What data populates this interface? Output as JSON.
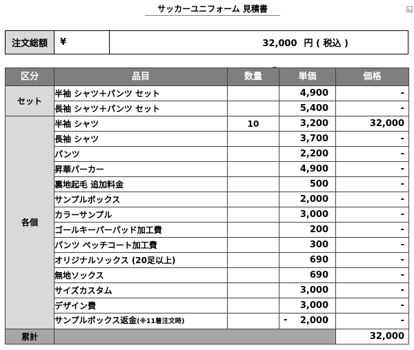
{
  "document": {
    "title": "サッカーユニフォーム 見積書"
  },
  "total": {
    "label": "注文総額",
    "currency": "¥",
    "amount": "32,000",
    "unit": "円 ( 税込 )"
  },
  "table": {
    "headers": {
      "category": "区分",
      "item": "品目",
      "quantity": "数量",
      "unit_price": "単価",
      "price": "価格"
    },
    "groups": [
      {
        "category": "セット",
        "rows": [
          {
            "item": "半袖 シャツ＋パンツ セット",
            "qty": "",
            "unit_price": "4,900",
            "price": "-"
          },
          {
            "item": "長袖 シャツ＋パンツ セット",
            "qty": "",
            "unit_price": "5,400",
            "price": "-"
          }
        ]
      },
      {
        "category": "各個",
        "rows": [
          {
            "item": "半袖 シャツ",
            "qty": "10",
            "unit_price": "3,200",
            "price": "32,000"
          },
          {
            "item": "長袖 シャツ",
            "qty": "",
            "unit_price": "3,700",
            "price": "-"
          },
          {
            "item": "パンツ",
            "qty": "",
            "unit_price": "2,200",
            "price": "-"
          },
          {
            "item": "昇華パーカー",
            "qty": "",
            "unit_price": "4,900",
            "price": "-"
          },
          {
            "item": "裏地起毛 追加料金",
            "qty": "",
            "unit_price": "500",
            "price": "-"
          },
          {
            "item": "サンプルボックス",
            "qty": "",
            "unit_price": "2,000",
            "price": "-"
          },
          {
            "item": "カラーサンプル",
            "qty": "",
            "unit_price": "3,000",
            "price": "-"
          },
          {
            "item": "ゴールキーパーパッド加工費",
            "qty": "",
            "unit_price": "200",
            "price": "-"
          },
          {
            "item": "パンツ ペッチコート加工費",
            "qty": "",
            "unit_price": "300",
            "price": "-"
          },
          {
            "item": "オリジナルソックス (20足以上)",
            "qty": "",
            "unit_price": "690",
            "price": "-"
          },
          {
            "item": "無地ソックス",
            "qty": "",
            "unit_price": "690",
            "price": "-"
          },
          {
            "item": "サイズカスタム",
            "qty": "",
            "unit_price": "3,000",
            "price": "-"
          },
          {
            "item": "デザイン費",
            "qty": "",
            "unit_price": "3,000",
            "price": "-"
          },
          {
            "item": "サンプルボックス返金",
            "item_note": "(※11着注文時)",
            "qty": "",
            "unit_price_sign": "-",
            "unit_price": "2,000",
            "price": "-"
          }
        ]
      }
    ],
    "footer": {
      "label": "累計",
      "total": "32,000"
    }
  }
}
